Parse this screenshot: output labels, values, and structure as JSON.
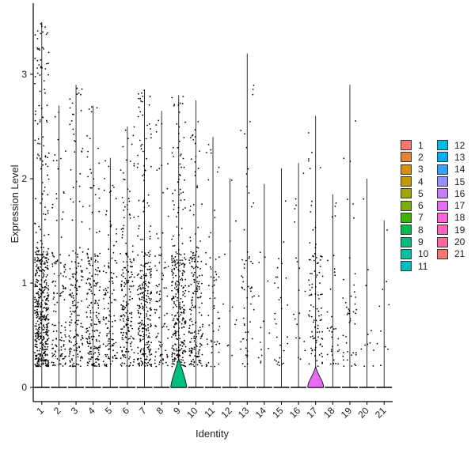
{
  "chart_data": {
    "type": "violin",
    "xlabel": "Identity",
    "ylabel": "Expression Level",
    "categories": [
      "1",
      "2",
      "3",
      "4",
      "5",
      "6",
      "7",
      "8",
      "9",
      "10",
      "11",
      "12",
      "13",
      "14",
      "15",
      "16",
      "17",
      "18",
      "19",
      "20",
      "21"
    ],
    "colors": [
      "#F8766D",
      "#EA8331",
      "#D89000",
      "#C09B00",
      "#A3A500",
      "#7CAE00",
      "#39B600",
      "#00BB4E",
      "#00BF7D",
      "#00C1A3",
      "#00BFC4",
      "#00BAE0",
      "#00B0F6",
      "#35A2FF",
      "#9590FF",
      "#C77CFF",
      "#E76BF3",
      "#FA62DB",
      "#FF62BC",
      "#FF6A98",
      "#F8766D"
    ],
    "ylim": [
      -0.15,
      3.65
    ],
    "yticks": [
      0,
      1,
      2,
      3
    ],
    "max_values": [
      3.5,
      2.7,
      2.9,
      2.7,
      2.2,
      2.5,
      2.85,
      2.65,
      2.8,
      2.75,
      2.4,
      2.0,
      3.2,
      1.95,
      2.1,
      2.15,
      2.6,
      1.85,
      2.9,
      2.0,
      1.6
    ],
    "point_density": [
      520,
      130,
      180,
      200,
      120,
      200,
      280,
      90,
      300,
      200,
      60,
      12,
      60,
      15,
      30,
      20,
      100,
      35,
      45,
      12,
      10
    ],
    "legend": {
      "title": "",
      "placement": "right",
      "entries": [
        "1",
        "2",
        "3",
        "4",
        "5",
        "6",
        "7",
        "8",
        "9",
        "10",
        "11",
        "12",
        "13",
        "14",
        "15",
        "16",
        "17",
        "18",
        "19",
        "20",
        "21"
      ]
    }
  }
}
